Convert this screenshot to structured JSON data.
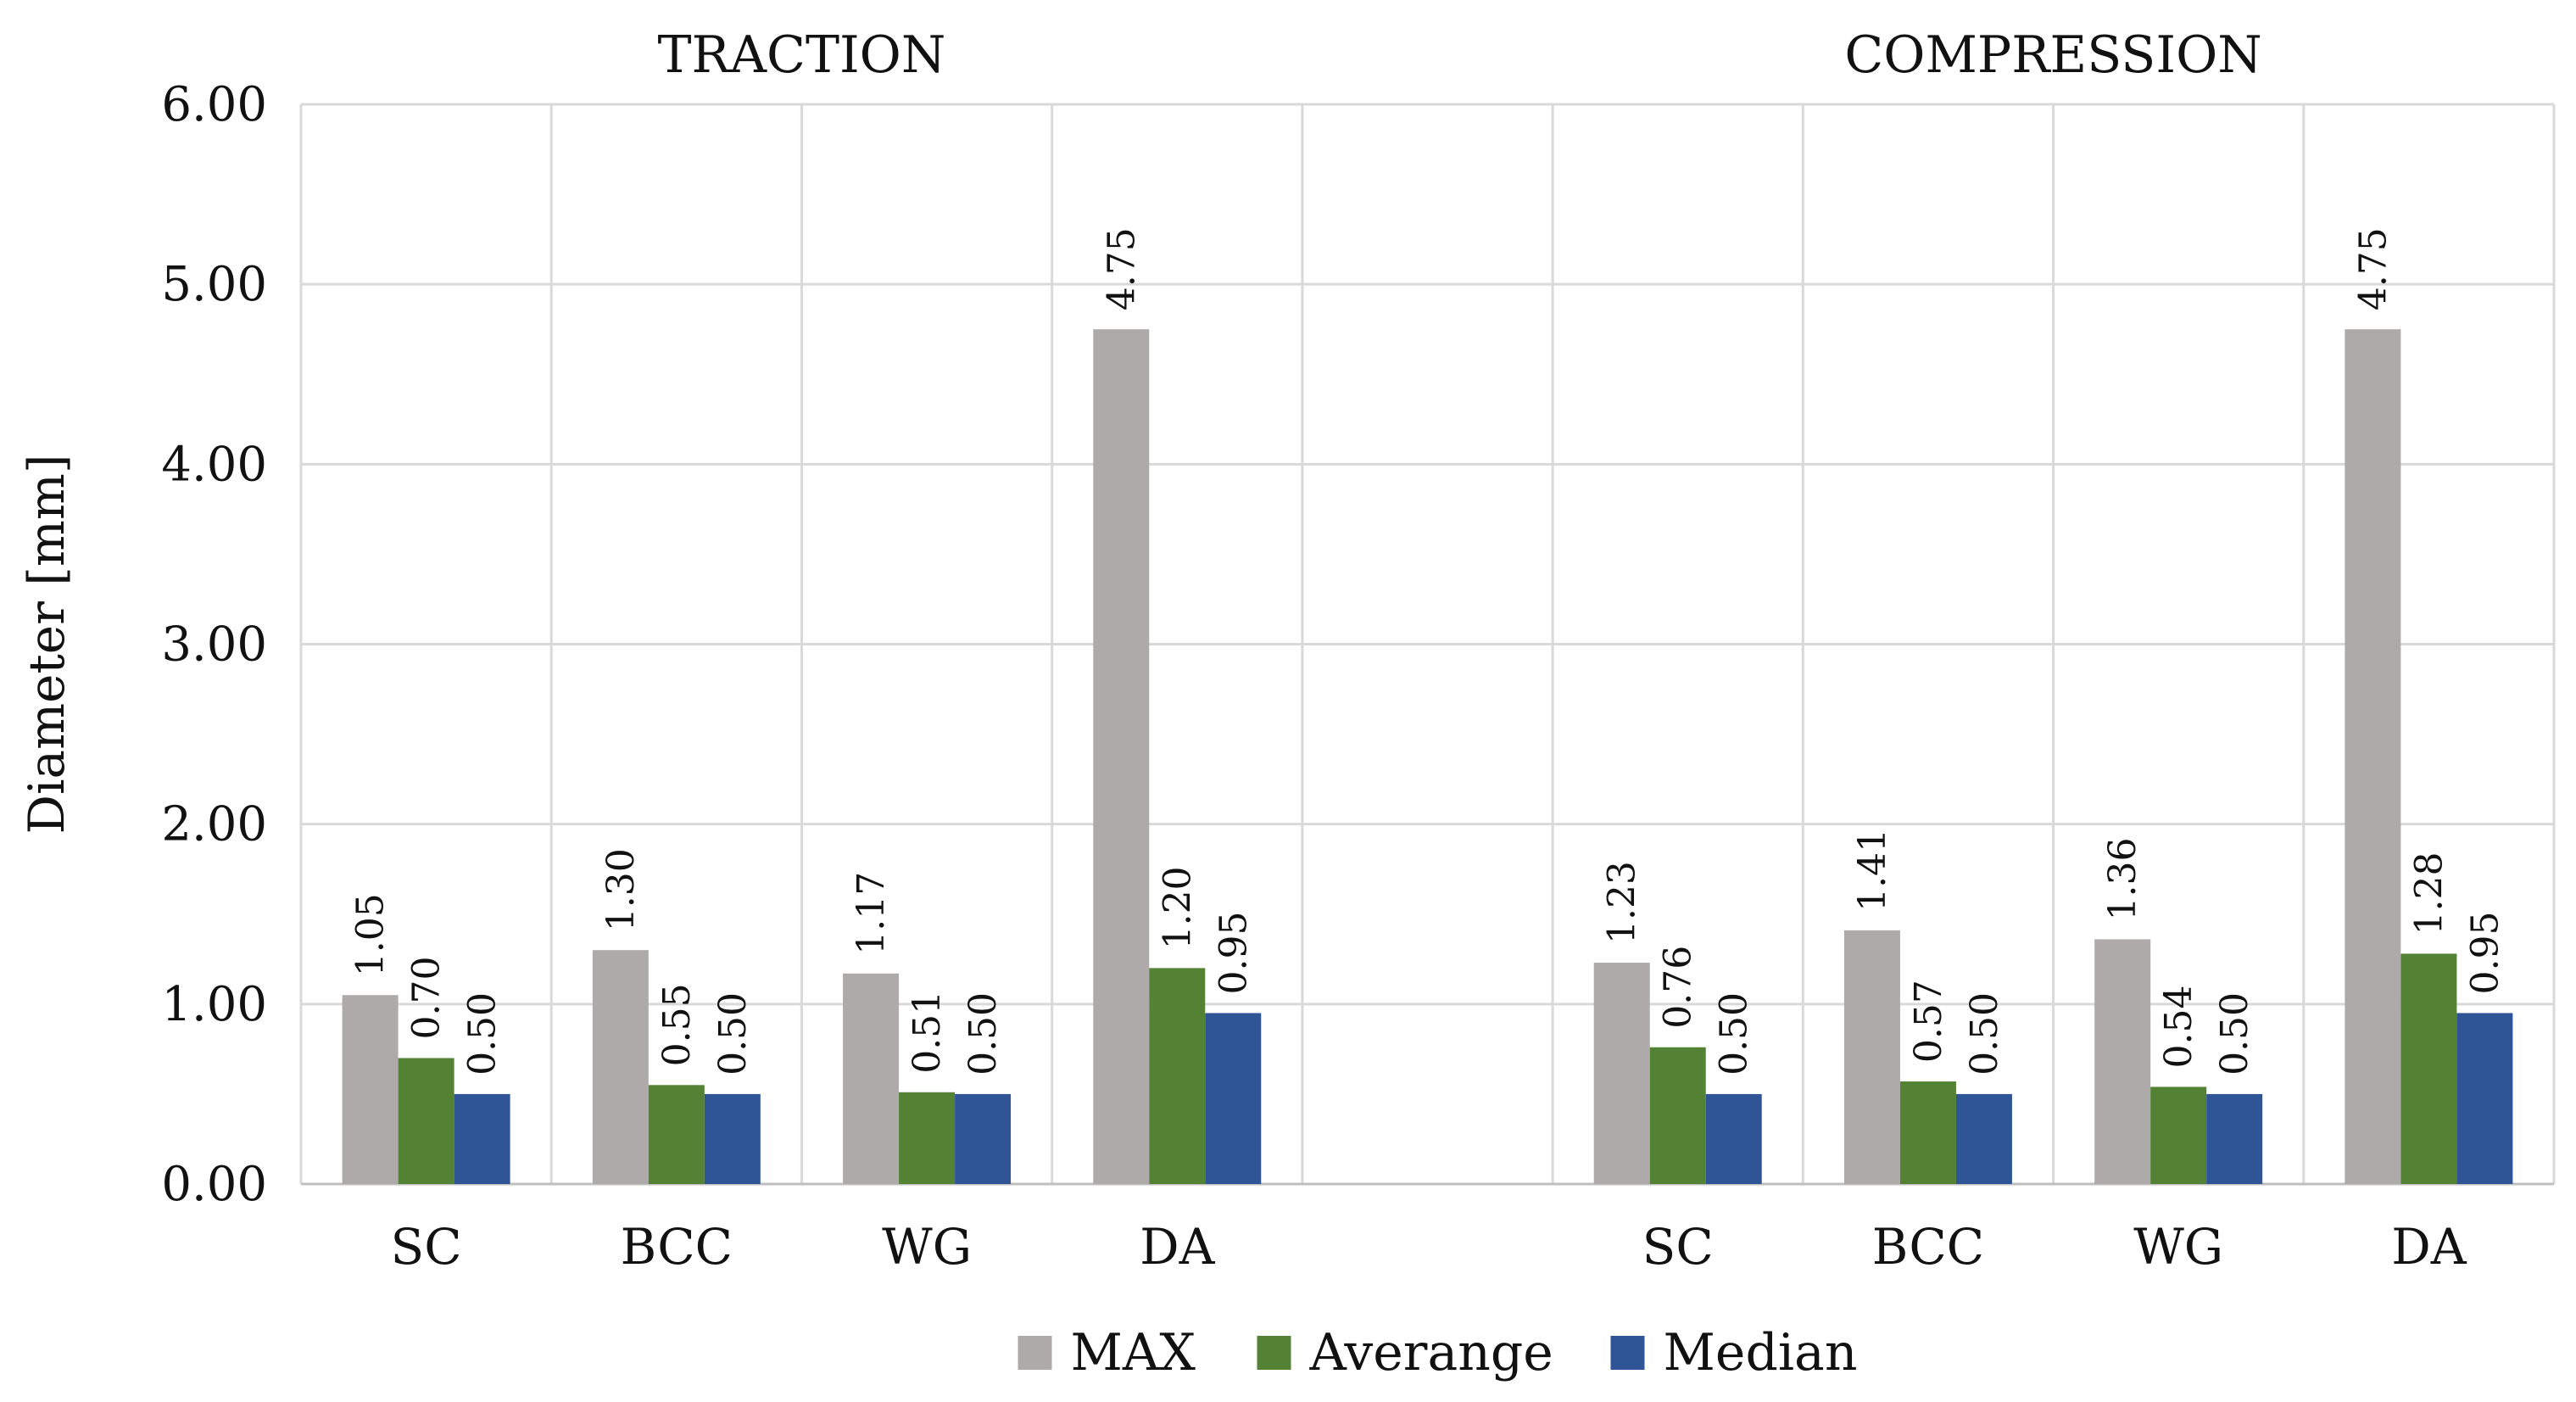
{
  "chart_data": {
    "type": "bar",
    "ylabel": "Diameter [mm]",
    "ylim": [
      0,
      6
    ],
    "yticks": [
      "0.00",
      "1.00",
      "2.00",
      "3.00",
      "4.00",
      "5.00",
      "6.00"
    ],
    "grid": true,
    "legend_position": "bottom",
    "groups": [
      {
        "title": "TRACTION",
        "categories": [
          "SC",
          "BCC",
          "WG",
          "DA"
        ],
        "series": [
          {
            "name": "MAX",
            "values": [
              1.05,
              1.3,
              1.17,
              4.75
            ],
            "labels": [
              "1.05",
              "1.30",
              "1.17",
              "4.75"
            ]
          },
          {
            "name": "Averange",
            "values": [
              0.7,
              0.55,
              0.51,
              1.2
            ],
            "labels": [
              "0.70",
              "0.55",
              "0.51",
              "1.20"
            ]
          },
          {
            "name": "Median",
            "values": [
              0.5,
              0.5,
              0.5,
              0.95
            ],
            "labels": [
              "0.50",
              "0.50",
              "0.50",
              "0.95"
            ]
          }
        ]
      },
      {
        "title": "COMPRESSION",
        "categories": [
          "SC",
          "BCC",
          "WG",
          "DA"
        ],
        "series": [
          {
            "name": "MAX",
            "values": [
              1.23,
              1.41,
              1.36,
              4.75
            ],
            "labels": [
              "1.23",
              "1.41",
              "1.36",
              "4.75"
            ]
          },
          {
            "name": "Averange",
            "values": [
              0.76,
              0.57,
              0.54,
              1.28
            ],
            "labels": [
              "0.76",
              "0.57",
              "0.54",
              "1.28"
            ]
          },
          {
            "name": "Median",
            "values": [
              0.5,
              0.5,
              0.5,
              0.95
            ],
            "labels": [
              "0.50",
              "0.50",
              "0.50",
              "0.95"
            ]
          }
        ]
      }
    ],
    "legend": [
      {
        "name": "MAX",
        "color": "#aeaaaa"
      },
      {
        "name": "Averange",
        "color": "#548235"
      },
      {
        "name": "Median",
        "color": "#2f5597"
      }
    ]
  }
}
